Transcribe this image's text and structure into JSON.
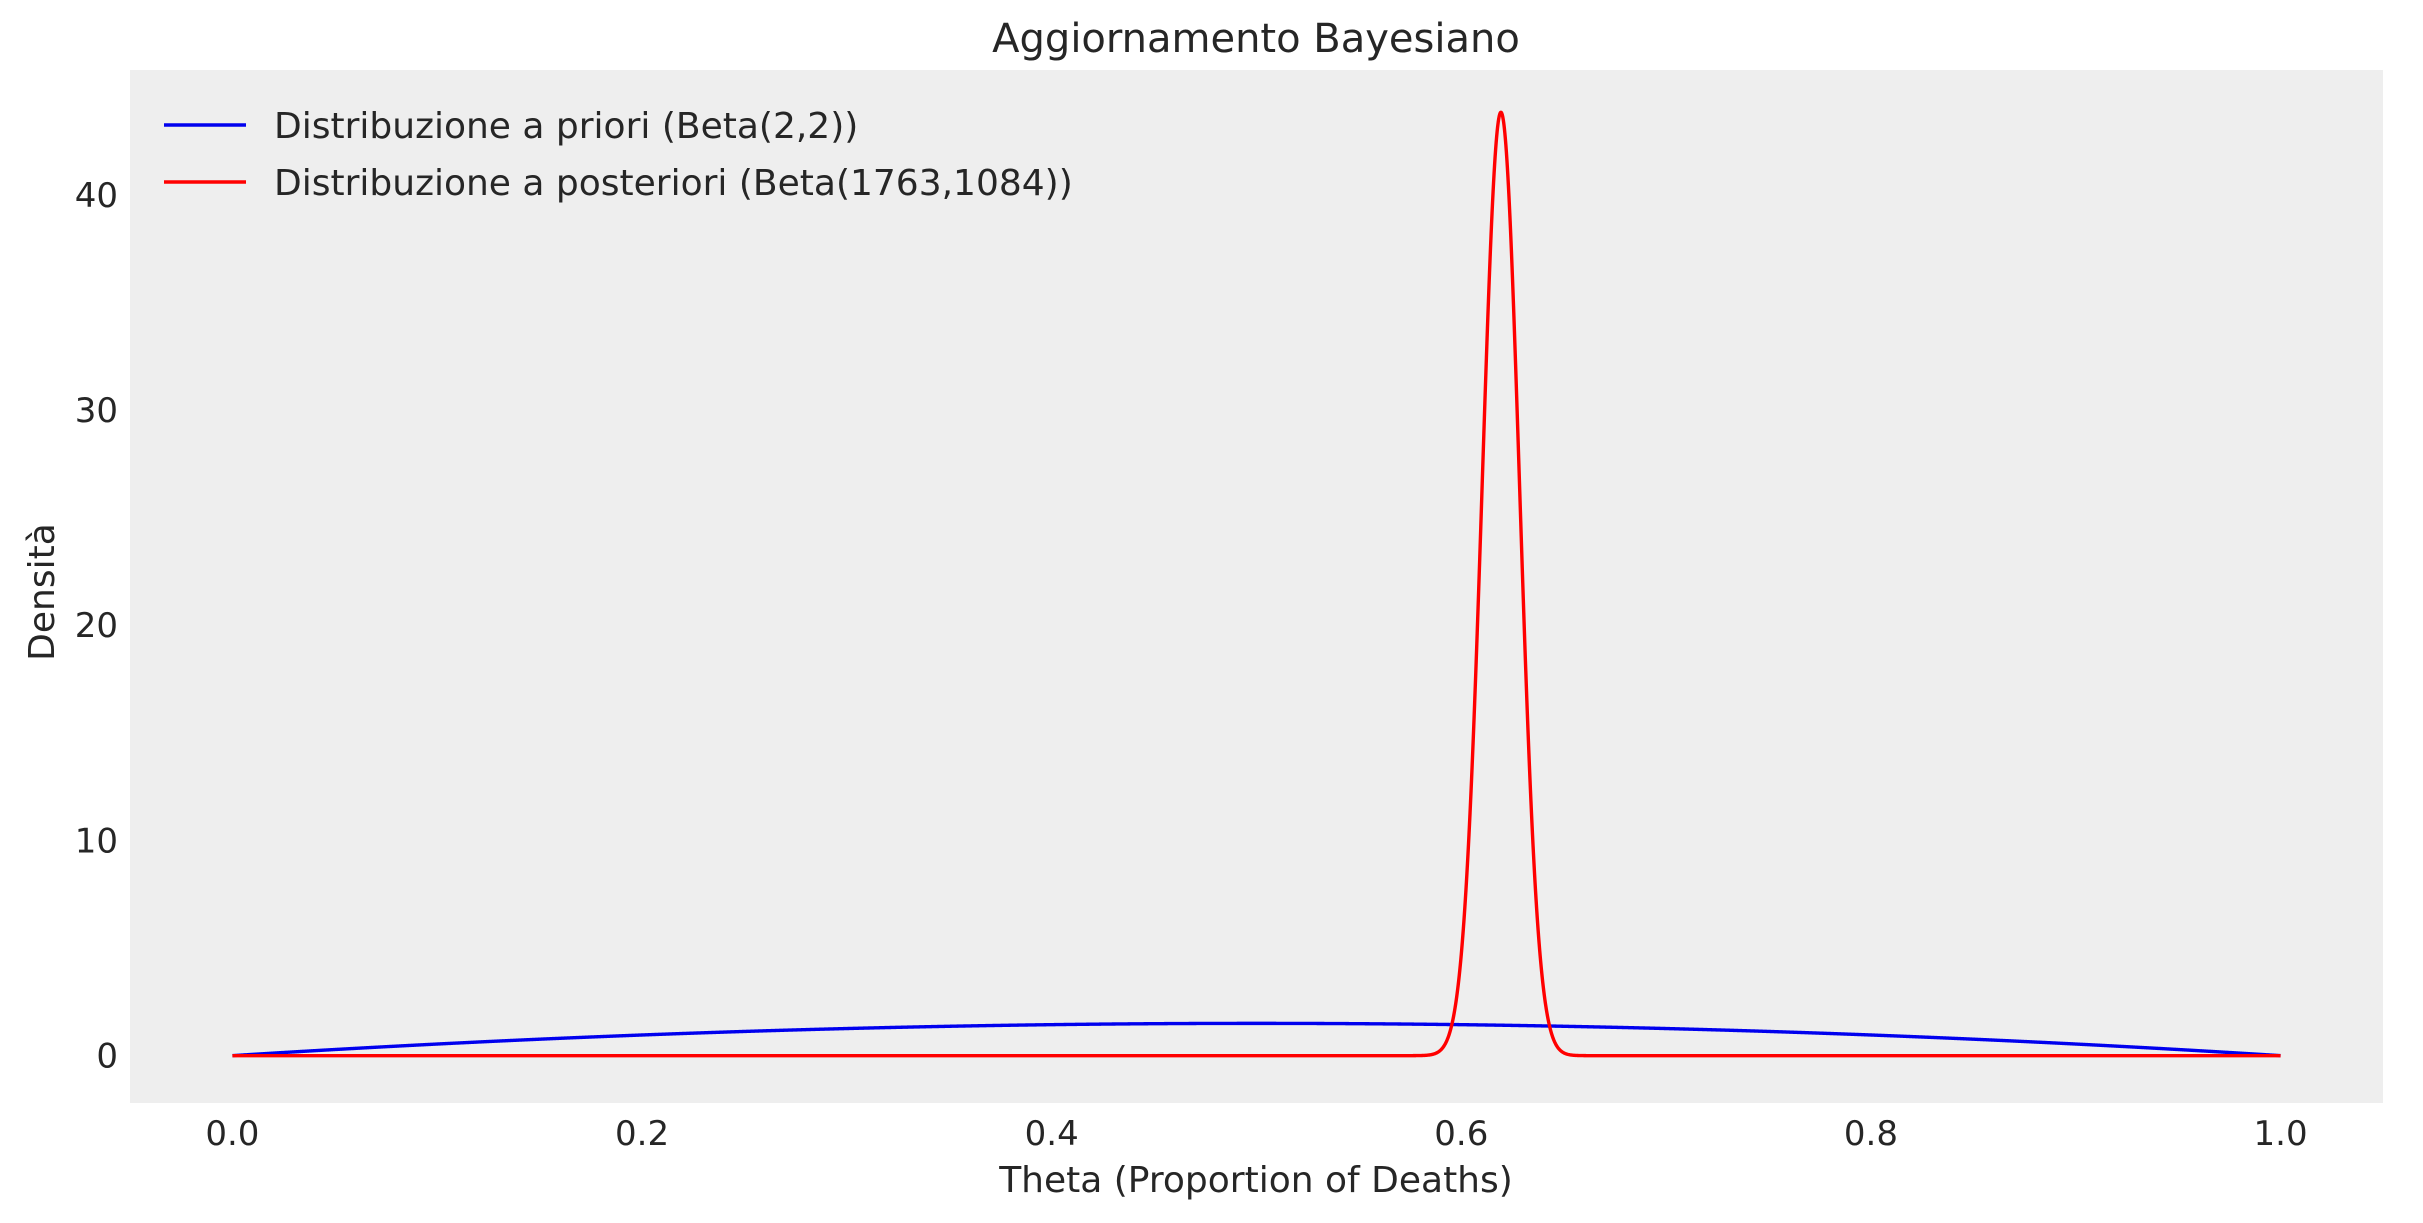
{
  "chart_data": {
    "type": "line",
    "title": "Aggiornamento Bayesiano",
    "xlabel": "Theta (Proportion of Deaths)",
    "ylabel": "Densità",
    "xlim": [
      -0.05,
      1.05
    ],
    "ylim": [
      -2.2,
      45.8
    ],
    "x_ticks": [
      0.0,
      0.2,
      0.4,
      0.6,
      0.8,
      1.0
    ],
    "x_tick_labels": [
      "0.0",
      "0.2",
      "0.4",
      "0.6",
      "0.8",
      "1.0"
    ],
    "y_ticks": [
      0,
      10,
      20,
      30,
      40
    ],
    "y_tick_labels": [
      "0",
      "10",
      "20",
      "30",
      "40"
    ],
    "grid": false,
    "legend_position": "top-left",
    "plot_background": "#eeeeee",
    "series": [
      {
        "name": "Distribuzione a priori (Beta(2,2))",
        "color": "#0000ee",
        "distribution": "beta",
        "alpha": 2,
        "beta": 2,
        "x": [
          0.0,
          0.1,
          0.2,
          0.3,
          0.4,
          0.5,
          0.6,
          0.7,
          0.8,
          0.9,
          1.0
        ],
        "y": [
          0.0,
          0.54,
          0.96,
          1.26,
          1.44,
          1.5,
          1.44,
          1.26,
          0.96,
          0.54,
          0.0
        ]
      },
      {
        "name": "Distribuzione a posteriori (Beta(1763,1084))",
        "color": "#ff0000",
        "distribution": "beta",
        "alpha": 1763,
        "beta": 1084,
        "x": [
          0.0,
          0.59,
          0.6,
          0.61,
          0.619,
          0.63,
          0.64,
          0.65,
          1.0
        ],
        "y": [
          0.0,
          0.3,
          6.7,
          31.5,
          43.7,
          27.3,
          5.0,
          0.3,
          0.0
        ]
      }
    ]
  }
}
